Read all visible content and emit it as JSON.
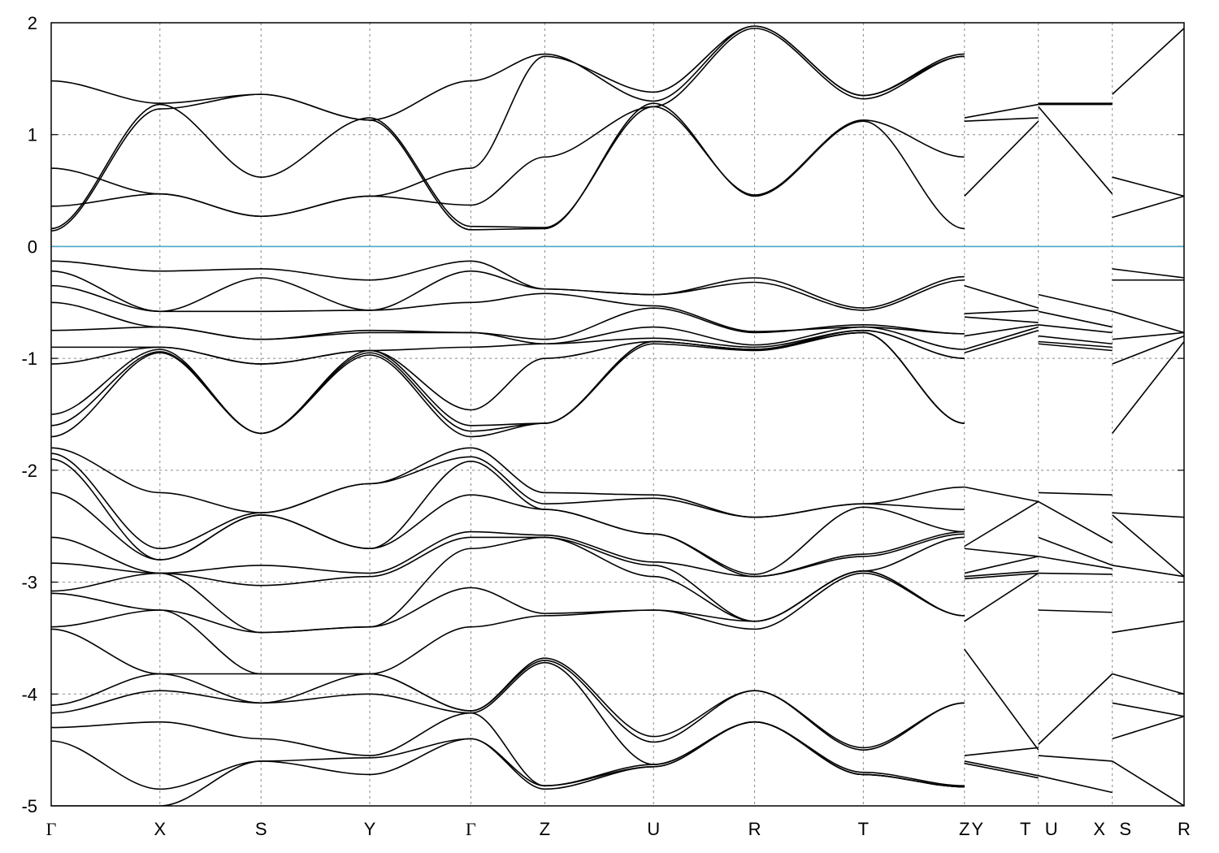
{
  "chart_data": {
    "type": "line",
    "title": "",
    "xlabel": "",
    "ylabel": "",
    "ylim": [
      -5,
      2
    ],
    "yticks": [
      "2",
      "1",
      "0",
      "-1",
      "-2",
      "-3",
      "-4",
      "-5"
    ],
    "yvalues": [
      2,
      1,
      0,
      -1,
      -2,
      -3,
      -4,
      -5
    ],
    "fermi_level": 0,
    "fermi_color": "#4aa8c8",
    "band_color": "#000000",
    "grid": true,
    "path_range": [
      0,
      10.42
    ],
    "kpoints": [
      {
        "label": "Γ",
        "x": 0
      },
      {
        "label": "X",
        "x": 1
      },
      {
        "label": "S",
        "x": 1.93
      },
      {
        "label": "Y",
        "x": 2.93
      },
      {
        "label": "Γ",
        "x": 3.86
      },
      {
        "label": "Z",
        "x": 4.54
      },
      {
        "label": "U",
        "x": 5.54
      },
      {
        "label": "R",
        "x": 6.47
      },
      {
        "label": "T",
        "x": 7.47
      },
      {
        "label": "Z",
        "x": 8.4
      },
      {
        "label": "Y",
        "x": 8.4,
        "label_offset": "right"
      },
      {
        "label": "T",
        "x": 9.08,
        "label_offset": "left"
      },
      {
        "label": "U",
        "x": 9.08,
        "label_offset": "right"
      },
      {
        "label": "X",
        "x": 9.76,
        "label_offset": "left"
      },
      {
        "label": "S",
        "x": 9.76,
        "label_offset": "right"
      },
      {
        "label": "R",
        "x": 10.42
      }
    ],
    "segments": [
      {
        "x": [
          0,
          1,
          1.93,
          2.93,
          3.86,
          4.54,
          5.54,
          6.47,
          7.47,
          8.4
        ],
        "bands": [
          [
            0.14,
            1.23,
            1.36,
            1.13,
            0.15,
            0.16,
            1.28,
            0.45,
            1.12,
            0.16
          ],
          [
            0.16,
            1.27,
            0.62,
            1.15,
            0.18,
            0.17,
            1.25,
            0.46,
            1.13,
            0.8
          ],
          [
            0.36,
            0.47,
            0.27,
            0.45,
            0.37,
            0.8,
            1.25,
            1.95,
            1.32,
            1.7
          ],
          [
            0.7,
            0.47,
            0.27,
            0.45,
            0.7,
            1.7,
            1.38,
            1.97,
            1.35,
            1.7
          ],
          [
            1.48,
            1.28,
            1.36,
            1.13,
            1.48,
            1.72,
            1.3,
            1.97,
            1.35,
            1.72
          ],
          [
            -0.13,
            -0.22,
            -0.2,
            -0.3,
            -0.13,
            -0.38,
            -0.43,
            -0.28,
            -0.55,
            -0.27
          ],
          [
            -0.22,
            -0.58,
            -0.28,
            -0.57,
            -0.22,
            -0.38,
            -0.43,
            -0.32,
            -0.57,
            -0.3
          ],
          [
            -0.35,
            -0.58,
            -0.58,
            -0.57,
            -0.5,
            -0.42,
            -0.53,
            -0.76,
            -0.72,
            -0.78
          ],
          [
            -0.5,
            -0.72,
            -0.83,
            -0.75,
            -0.77,
            -0.83,
            -0.55,
            -0.77,
            -0.7,
            -0.78
          ],
          [
            -0.75,
            -0.72,
            -0.83,
            -0.77,
            -0.77,
            -0.87,
            -0.72,
            -0.88,
            -0.72,
            -0.92
          ],
          [
            -0.9,
            -0.9,
            -1.05,
            -0.93,
            -0.9,
            -0.87,
            -0.82,
            -0.9,
            -0.75,
            -1.0
          ],
          [
            -1.05,
            -0.9,
            -1.05,
            -0.93,
            -1.46,
            -1.0,
            -0.85,
            -0.92,
            -0.75,
            -1.0
          ],
          [
            -1.5,
            -0.92,
            -1.67,
            -0.93,
            -1.6,
            -1.58,
            -0.85,
            -0.92,
            -0.77,
            -1.58
          ],
          [
            -1.6,
            -0.94,
            -1.67,
            -0.95,
            -1.65,
            -1.58,
            -0.85,
            -0.92,
            -0.77,
            -1.58
          ],
          [
            -1.7,
            -0.95,
            -1.67,
            -0.97,
            -1.7,
            -1.58,
            -0.87,
            -0.93,
            -0.77,
            -1.58
          ],
          [
            -1.8,
            -2.2,
            -2.38,
            -2.12,
            -1.8,
            -2.2,
            -2.22,
            -2.42,
            -2.3,
            -2.15
          ],
          [
            -1.85,
            -2.7,
            -2.38,
            -2.12,
            -1.88,
            -2.3,
            -2.25,
            -2.42,
            -2.3,
            -2.35
          ],
          [
            -1.9,
            -2.8,
            -2.4,
            -2.7,
            -1.92,
            -2.35,
            -2.57,
            -2.93,
            -2.33,
            -2.55
          ],
          [
            -2.2,
            -2.8,
            -2.4,
            -2.7,
            -2.22,
            -2.35,
            -2.57,
            -2.95,
            -2.75,
            -2.55
          ],
          [
            -2.6,
            -2.92,
            -2.85,
            -2.92,
            -2.55,
            -2.58,
            -2.82,
            -2.95,
            -2.77,
            -2.57
          ],
          [
            -2.83,
            -2.92,
            -3.03,
            -2.95,
            -2.6,
            -2.6,
            -2.85,
            -3.35,
            -2.9,
            -2.6
          ],
          [
            -3.08,
            -2.92,
            -3.45,
            -3.4,
            -2.7,
            -2.6,
            -2.95,
            -3.35,
            -2.9,
            -3.3
          ],
          [
            -3.1,
            -3.25,
            -3.45,
            -3.4,
            -3.05,
            -3.28,
            -3.25,
            -3.35,
            -2.9,
            -3.3
          ],
          [
            -3.4,
            -3.25,
            -3.82,
            -3.82,
            -3.4,
            -3.3,
            -3.25,
            -3.42,
            -2.92,
            -3.3
          ],
          [
            -3.42,
            -3.82,
            -3.82,
            -3.82,
            -4.15,
            -3.68,
            -4.38,
            -3.97,
            -4.48,
            -4.08
          ],
          [
            -4.1,
            -3.82,
            -4.08,
            -3.82,
            -4.15,
            -3.7,
            -4.43,
            -3.97,
            -4.5,
            -4.08
          ],
          [
            -4.17,
            -3.97,
            -4.08,
            -4.0,
            -4.17,
            -3.72,
            -4.63,
            -4.25,
            -4.7,
            -4.82
          ],
          [
            -4.3,
            -4.25,
            -4.4,
            -4.55,
            -4.17,
            -4.82,
            -4.63,
            -4.25,
            -4.72,
            -4.83
          ],
          [
            -4.42,
            -4.85,
            -4.6,
            -4.57,
            -4.4,
            -4.82,
            -4.65,
            -4.25,
            -4.72,
            -4.83
          ],
          [
            -5.0,
            -5.0,
            -4.6,
            -4.72,
            -4.4,
            -4.85,
            -4.65,
            -4.25,
            -4.72,
            -4.83
          ]
        ]
      },
      {
        "x": [
          8.4,
          9.08
        ],
        "bands": [
          [
            0.45,
            1.12
          ],
          [
            1.12,
            1.15
          ],
          [
            1.15,
            1.27
          ],
          [
            -0.35,
            -0.55
          ],
          [
            -0.6,
            -0.57
          ],
          [
            -0.63,
            -0.68
          ],
          [
            -0.8,
            -0.7
          ],
          [
            -0.92,
            -0.72
          ],
          [
            -0.95,
            -0.75
          ],
          [
            -2.15,
            -2.28
          ],
          [
            -2.68,
            -2.28
          ],
          [
            -2.7,
            -2.77
          ],
          [
            -2.92,
            -2.77
          ],
          [
            -2.95,
            -2.9
          ],
          [
            -2.97,
            -2.92
          ],
          [
            -3.35,
            -2.92
          ],
          [
            -3.6,
            -4.5
          ],
          [
            -4.55,
            -4.48
          ],
          [
            -4.6,
            -4.73
          ],
          [
            -4.62,
            -4.75
          ]
        ]
      },
      {
        "x": [
          9.08,
          9.76
        ],
        "bands": [
          [
            1.27,
            1.27
          ],
          [
            1.25,
            0.47
          ],
          [
            1.28,
            1.28
          ],
          [
            -0.43,
            -0.58
          ],
          [
            -0.58,
            -0.72
          ],
          [
            -0.7,
            -0.77
          ],
          [
            -0.8,
            -0.87
          ],
          [
            -0.85,
            -0.9
          ],
          [
            -0.87,
            -0.93
          ],
          [
            -2.2,
            -2.22
          ],
          [
            -2.28,
            -2.65
          ],
          [
            -2.6,
            -2.85
          ],
          [
            -2.77,
            -2.88
          ],
          [
            -2.92,
            -2.93
          ],
          [
            -3.25,
            -3.27
          ],
          [
            -4.45,
            -3.82
          ],
          [
            -4.55,
            -4.6
          ],
          [
            -4.73,
            -4.88
          ]
        ]
      },
      {
        "x": [
          9.76,
          10.42
        ],
        "bands": [
          [
            0.26,
            0.45
          ],
          [
            0.62,
            0.45
          ],
          [
            1.36,
            1.95
          ],
          [
            -0.2,
            -0.28
          ],
          [
            -0.3,
            -0.3
          ],
          [
            -0.58,
            -0.77
          ],
          [
            -0.83,
            -0.77
          ],
          [
            -1.05,
            -0.8
          ],
          [
            -1.67,
            -0.85
          ],
          [
            -2.38,
            -2.42
          ],
          [
            -2.4,
            -2.95
          ],
          [
            -2.85,
            -2.95
          ],
          [
            -3.45,
            -3.35
          ],
          [
            -3.82,
            -4.0
          ],
          [
            -4.08,
            -4.2
          ],
          [
            -4.4,
            -4.2
          ],
          [
            -4.6,
            -5.0
          ]
        ]
      }
    ]
  }
}
